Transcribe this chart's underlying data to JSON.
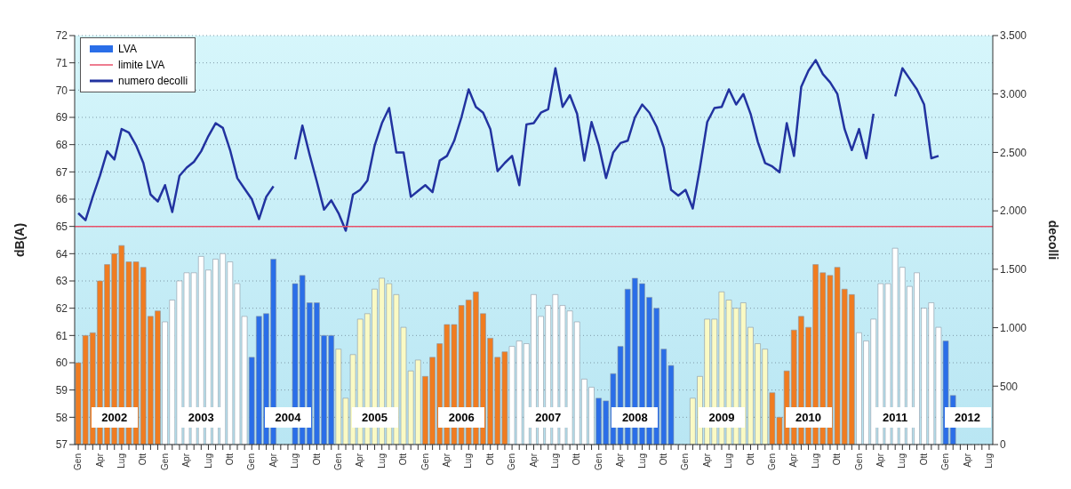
{
  "chart_data": {
    "type": "bar",
    "ylabel": "dB(A)",
    "y2label": "decolli",
    "categories": [
      "Gen",
      null,
      null,
      "Apr",
      null,
      null,
      "Lug",
      null,
      null,
      "Ott",
      null,
      null,
      "Gen",
      null,
      null,
      "Apr",
      null,
      null,
      "Lug",
      null,
      null,
      "Ott",
      null,
      null,
      "Gen",
      null,
      null,
      "Apr",
      null,
      null,
      "Lug",
      null,
      null,
      "Ott",
      null,
      null,
      "Gen",
      null,
      null,
      "Apr",
      null,
      null,
      "Lug",
      null,
      null,
      "Ott",
      null,
      null,
      "Gen",
      null,
      null,
      "Apr",
      null,
      null,
      "Lug",
      null,
      null,
      "Ott",
      null,
      null,
      "Gen",
      null,
      null,
      "Apr",
      null,
      null,
      "Lug",
      null,
      null,
      "Ott",
      null,
      null,
      "Gen",
      null,
      null,
      "Apr",
      null,
      null,
      "Lug",
      null,
      null,
      "Ott",
      null,
      null,
      "Gen",
      null,
      null,
      "Apr",
      null,
      null,
      "Lug",
      null,
      null,
      "Ott",
      null,
      null,
      "Gen",
      null,
      null,
      "Apr",
      null,
      null,
      "Lug",
      null,
      null,
      "Ott",
      null,
      null,
      "Gen",
      null,
      null,
      "Apr",
      null,
      null,
      "Lug",
      null,
      null,
      "Ott",
      null,
      null,
      "Gen",
      null,
      null,
      "Apr",
      null,
      null,
      "Lug"
    ],
    "series": [
      {
        "name": "LVA",
        "color": "#2a6ee8",
        "values": [
          60.0,
          61.0,
          61.1,
          63.0,
          63.6,
          64.0,
          64.3,
          63.7,
          63.7,
          63.5,
          61.7,
          61.9,
          61.5,
          62.3,
          63.0,
          63.3,
          63.3,
          63.9,
          63.4,
          63.8,
          64.0,
          63.7,
          62.9,
          61.7,
          60.2,
          61.7,
          61.8,
          63.8,
          null,
          null,
          62.9,
          63.2,
          62.2,
          62.2,
          61.0,
          61.0,
          60.5,
          58.7,
          60.3,
          61.6,
          61.8,
          62.7,
          63.1,
          62.9,
          62.5,
          61.3,
          59.7,
          60.1,
          59.5,
          60.2,
          60.7,
          61.4,
          61.4,
          62.1,
          62.3,
          62.6,
          61.8,
          60.9,
          60.2,
          60.4,
          60.6,
          60.8,
          60.7,
          62.5,
          61.7,
          62.1,
          62.5,
          62.1,
          61.9,
          61.5,
          59.4,
          59.1,
          58.7,
          58.6,
          59.6,
          60.6,
          62.7,
          63.1,
          62.9,
          62.4,
          62.0,
          60.5,
          59.9,
          null,
          null,
          58.7,
          59.5,
          61.6,
          61.6,
          62.6,
          62.3,
          62.0,
          62.2,
          61.3,
          60.7,
          60.5,
          58.9,
          58.0,
          59.7,
          61.2,
          61.7,
          61.3,
          63.6,
          63.3,
          63.2,
          63.5,
          62.7,
          62.5,
          61.1,
          60.8,
          61.6,
          62.9,
          62.9,
          64.2,
          63.5,
          62.8,
          63.3,
          62.0,
          62.2,
          61.3,
          60.8,
          58.8,
          null,
          null,
          null,
          null,
          null
        ],
        "colors": [
          "#f07c20",
          "#f07c20",
          "#f07c20",
          "#f07c20",
          "#f07c20",
          "#f07c20",
          "#f07c20",
          "#f07c20",
          "#f07c20",
          "#f07c20",
          "#f07c20",
          "#f07c20",
          "#ffffff",
          "#ffffff",
          "#ffffff",
          "#ffffff",
          "#ffffff",
          "#ffffff",
          "#ffffff",
          "#ffffff",
          "#ffffff",
          "#ffffff",
          "#ffffff",
          "#ffffff",
          "#2a6ee8",
          "#2a6ee8",
          "#2a6ee8",
          "#2a6ee8",
          "#2a6ee8",
          "#2a6ee8",
          "#2a6ee8",
          "#2a6ee8",
          "#2a6ee8",
          "#2a6ee8",
          "#2a6ee8",
          "#2a6ee8",
          "#fafac4",
          "#fafac4",
          "#fafac4",
          "#fafac4",
          "#fafac4",
          "#fafac4",
          "#fafac4",
          "#fafac4",
          "#fafac4",
          "#fafac4",
          "#fafac4",
          "#fafac4",
          "#f07c20",
          "#f07c20",
          "#f07c20",
          "#f07c20",
          "#f07c20",
          "#f07c20",
          "#f07c20",
          "#f07c20",
          "#f07c20",
          "#f07c20",
          "#f07c20",
          "#f07c20",
          "#ffffff",
          "#ffffff",
          "#ffffff",
          "#ffffff",
          "#ffffff",
          "#ffffff",
          "#ffffff",
          "#ffffff",
          "#ffffff",
          "#ffffff",
          "#ffffff",
          "#ffffff",
          "#2a6ee8",
          "#2a6ee8",
          "#2a6ee8",
          "#2a6ee8",
          "#2a6ee8",
          "#2a6ee8",
          "#2a6ee8",
          "#2a6ee8",
          "#2a6ee8",
          "#2a6ee8",
          "#2a6ee8",
          "#2a6ee8",
          "#fafac4",
          "#fafac4",
          "#fafac4",
          "#fafac4",
          "#fafac4",
          "#fafac4",
          "#fafac4",
          "#fafac4",
          "#fafac4",
          "#fafac4",
          "#fafac4",
          "#fafac4",
          "#f07c20",
          "#f07c20",
          "#f07c20",
          "#f07c20",
          "#f07c20",
          "#f07c20",
          "#f07c20",
          "#f07c20",
          "#f07c20",
          "#f07c20",
          "#f07c20",
          "#f07c20",
          "#ffffff",
          "#ffffff",
          "#ffffff",
          "#ffffff",
          "#ffffff",
          "#ffffff",
          "#ffffff",
          "#ffffff",
          "#ffffff",
          "#ffffff",
          "#ffffff",
          "#ffffff",
          "#2a6ee8",
          "#2a6ee8",
          "#2a6ee8",
          "#2a6ee8",
          "#2a6ee8",
          "#2a6ee8",
          "#2a6ee8"
        ]
      },
      {
        "name": "numero decolli",
        "type": "line",
        "axis": "y2",
        "color": "#2233a0",
        "values": [
          1980,
          1920,
          2120,
          2300,
          2510,
          2440,
          2700,
          2670,
          2560,
          2410,
          2140,
          2080,
          2220,
          1990,
          2300,
          2370,
          2420,
          2510,
          2640,
          2750,
          2710,
          2520,
          2280,
          2190,
          2100,
          1930,
          2120,
          2210,
          null,
          null,
          2440,
          2730,
          2480,
          2250,
          2010,
          2090,
          1980,
          1830,
          2140,
          2180,
          2260,
          2560,
          2750,
          2880,
          2500,
          2500,
          2120,
          2170,
          2220,
          2160,
          2430,
          2470,
          2600,
          2800,
          3040,
          2890,
          2840,
          2700,
          2340,
          2410,
          2470,
          2220,
          2740,
          2750,
          2840,
          2870,
          3220,
          2890,
          2990,
          2830,
          2430,
          2760,
          2560,
          2280,
          2500,
          2580,
          2600,
          2800,
          2910,
          2840,
          2720,
          2540,
          2180,
          2130,
          2180,
          2020,
          2370,
          2760,
          2880,
          2890,
          3040,
          2910,
          3000,
          2830,
          2590,
          2410,
          2380,
          2330,
          2750,
          2470,
          3060,
          3200,
          3290,
          3170,
          3100,
          3000,
          2700,
          2520,
          2700,
          2450,
          2830,
          null,
          null,
          2980,
          3220,
          3130,
          3040,
          2910,
          2450,
          2470,
          null,
          null,
          null,
          null,
          null,
          null,
          null
        ]
      }
    ],
    "ylim": [
      57,
      72
    ],
    "yticks": [
      57,
      58,
      59,
      60,
      61,
      62,
      63,
      64,
      65,
      66,
      67,
      68,
      69,
      70,
      71,
      72
    ],
    "y2lim": [
      0,
      3500
    ],
    "y2ticks": [
      0,
      500,
      {
        "value": 1000,
        "label": "1.000"
      },
      {
        "value": 1500,
        "label": "1.500"
      },
      {
        "value": 2000,
        "label": "2.000"
      },
      {
        "value": 2500,
        "label": "2.500"
      },
      {
        "value": 3000,
        "label": "3.000"
      },
      {
        "value": 3500,
        "label": "3.500"
      }
    ],
    "ref_lines": [
      {
        "axis": "y",
        "value": 65,
        "label": "limite LVA",
        "color": "#e8506a"
      }
    ],
    "annotations": [
      "2002",
      "2003",
      "2004",
      "2005",
      "2006",
      "2007",
      "2008",
      "2009",
      "2010",
      "2011",
      "2012"
    ],
    "grid": "y",
    "legend": "top left"
  }
}
